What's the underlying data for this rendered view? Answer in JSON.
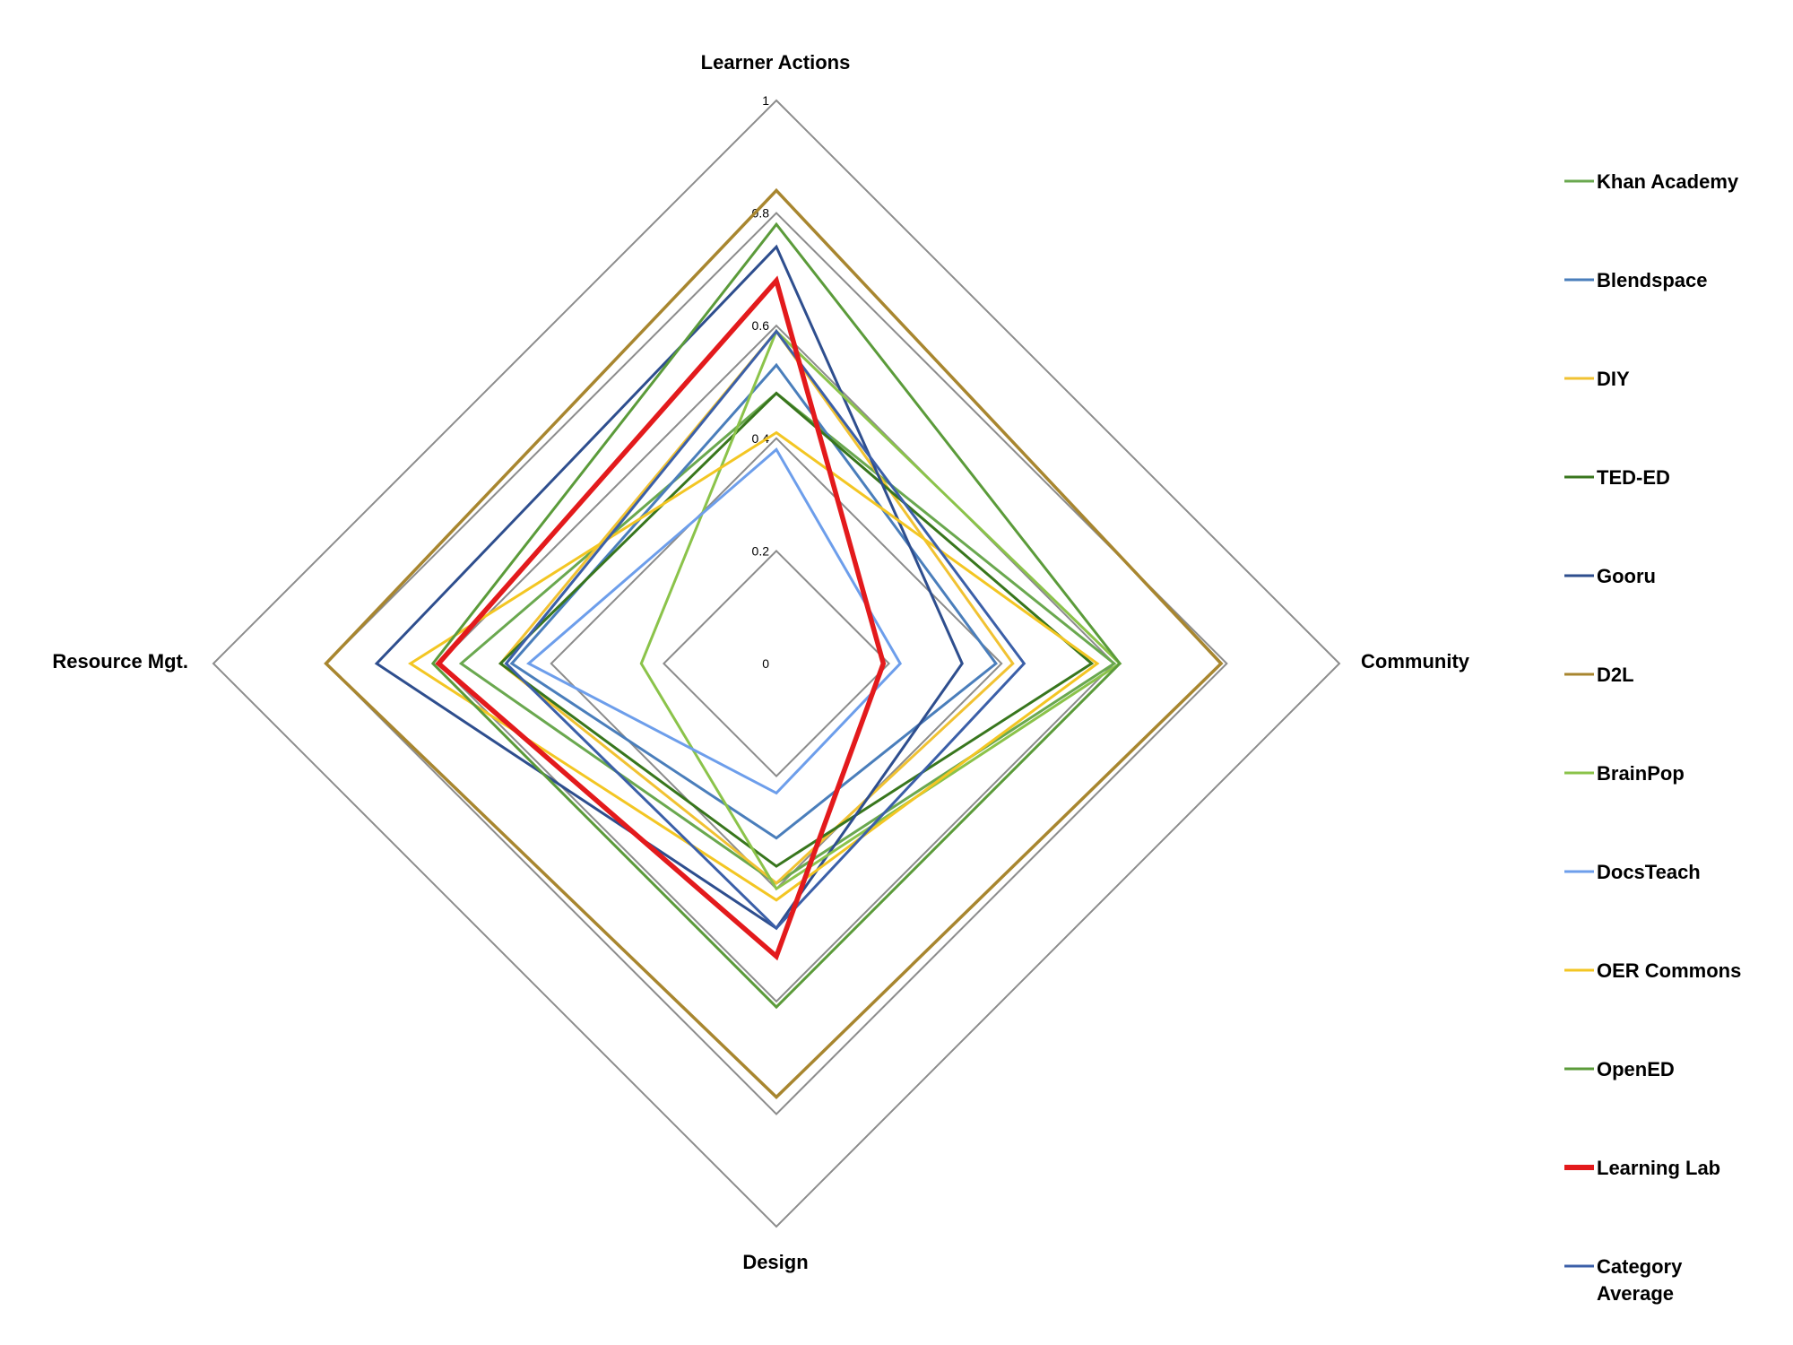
{
  "chart_data": {
    "type": "radar",
    "axes": [
      "Learner Actions",
      "Community",
      "Design",
      "Resource Mgt."
    ],
    "r_range": [
      0,
      1
    ],
    "ticks": [
      "0",
      "0.2",
      "0.4",
      "0.6",
      "0.8",
      "1"
    ],
    "legend_position": "right",
    "series": [
      {
        "name": "Khan Academy",
        "color": "#6aa84f",
        "width": 3,
        "values": [
          0.48,
          0.6,
          0.39,
          0.56
        ]
      },
      {
        "name": "Blendspace",
        "color": "#4a7ebb",
        "width": 3,
        "values": [
          0.53,
          0.39,
          0.31,
          0.47
        ]
      },
      {
        "name": "DIY",
        "color": "#f1c232",
        "width": 3,
        "values": [
          0.59,
          0.42,
          0.39,
          0.49
        ]
      },
      {
        "name": "TED-ED",
        "color": "#38761d",
        "width": 3,
        "values": [
          0.48,
          0.56,
          0.36,
          0.49
        ]
      },
      {
        "name": "Gooru",
        "color": "#2e4e8e",
        "width": 3,
        "values": [
          0.74,
          0.33,
          0.47,
          0.71
        ]
      },
      {
        "name": "D2L",
        "color": "#a8862f",
        "width": 3.5,
        "values": [
          0.84,
          0.79,
          0.77,
          0.8
        ]
      },
      {
        "name": "BrainPop",
        "color": "#8bc34a",
        "width": 3,
        "values": [
          0.59,
          0.61,
          0.4,
          0.24
        ]
      },
      {
        "name": "DocsTeach",
        "color": "#6d9eeb",
        "width": 3,
        "values": [
          0.38,
          0.22,
          0.23,
          0.44
        ]
      },
      {
        "name": "OER Commons",
        "color": "#f3c623",
        "width": 3,
        "values": [
          0.41,
          0.57,
          0.42,
          0.65
        ]
      },
      {
        "name": "OpenED",
        "color": "#5b9b3a",
        "width": 3,
        "values": [
          0.78,
          0.61,
          0.61,
          0.61
        ]
      },
      {
        "name": "Learning Lab",
        "color": "#e31a1c",
        "width": 5.5,
        "values": [
          0.68,
          0.19,
          0.52,
          0.6
        ]
      },
      {
        "name": "Category Average",
        "color": "#3b5fa8",
        "width": 3,
        "values": [
          0.59,
          0.44,
          0.47,
          0.48
        ]
      }
    ],
    "legend_wrap": {
      "Category Average": [
        "Category",
        "Average"
      ]
    }
  }
}
